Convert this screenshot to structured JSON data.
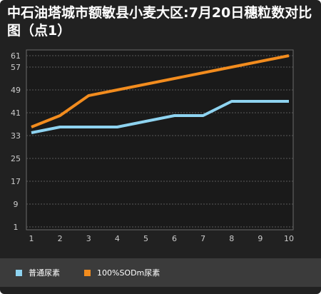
{
  "chart_data": {
    "type": "line",
    "title": "中石油塔城市额敏县小麦大区:7月20日穗粒数对比图（点1）",
    "x": [
      1,
      2,
      3,
      4,
      5,
      6,
      7,
      8,
      9,
      10
    ],
    "yticks": [
      1,
      9,
      17,
      25,
      33,
      41,
      49,
      57,
      61
    ],
    "ylim": [
      0,
      63
    ],
    "xlim": [
      1,
      10
    ],
    "grid": true,
    "legend_position": "bottom",
    "series": [
      {
        "name": "普通尿素",
        "color": "#8ed3f0",
        "values": [
          34,
          36,
          36,
          36,
          38,
          40,
          40,
          45,
          45,
          45
        ]
      },
      {
        "name": "100%SODm尿素",
        "color": "#f28c1e",
        "values": [
          36,
          40,
          47,
          49,
          51,
          53,
          55,
          57,
          59,
          61
        ]
      }
    ]
  }
}
